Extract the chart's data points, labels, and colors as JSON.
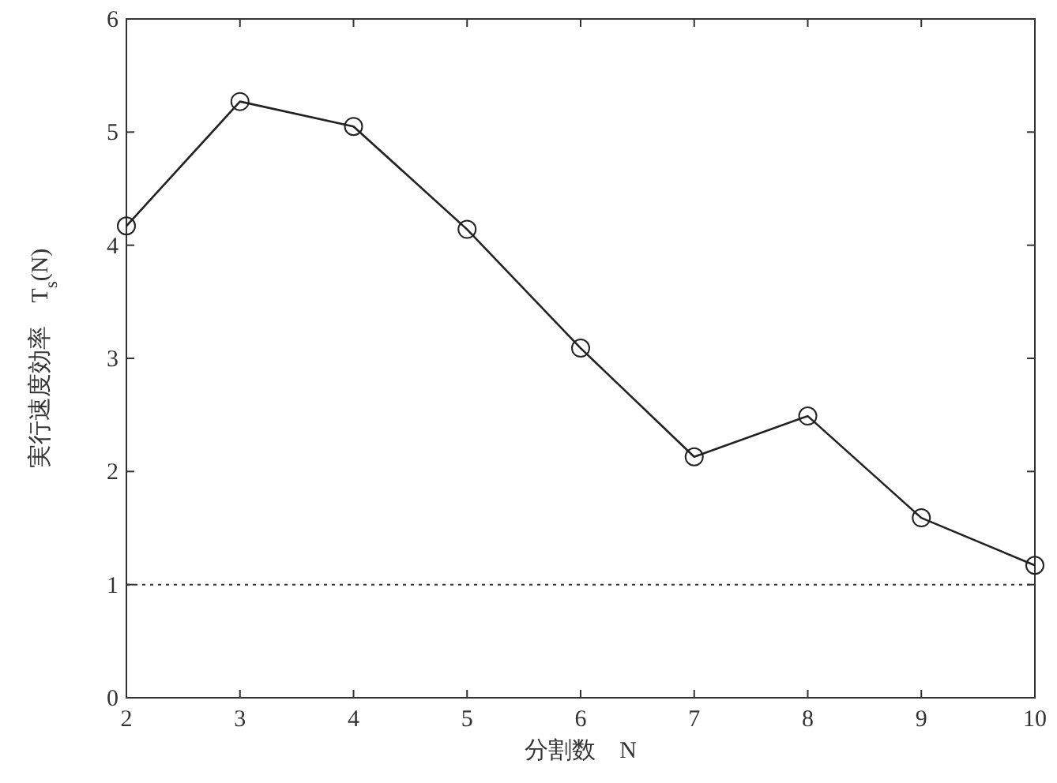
{
  "chart_data": {
    "type": "line",
    "xlabel": "分割数　N",
    "ylabel": "実行速度効率　T$_{s}$(N)",
    "x": [
      2,
      3,
      4,
      5,
      6,
      7,
      8,
      9,
      10
    ],
    "series": [
      {
        "color": "#222222",
        "values": [
          4.17,
          5.27,
          5.05,
          4.14,
          3.09,
          2.13,
          2.49,
          1.59,
          1.17
        ]
      }
    ],
    "xlim": [
      2,
      10
    ],
    "xticks": [
      2,
      3,
      4,
      5,
      6,
      7,
      8,
      9,
      10
    ],
    "ylim": [
      0,
      6
    ],
    "yticks": [
      0,
      1,
      2,
      3,
      4,
      5,
      6
    ],
    "ref_lines": [
      {
        "axis": "y",
        "value": 1,
        "color": "#333333",
        "line_style": "dotted"
      }
    ],
    "marker": "circle",
    "line_style": "solid",
    "grid": false
  }
}
